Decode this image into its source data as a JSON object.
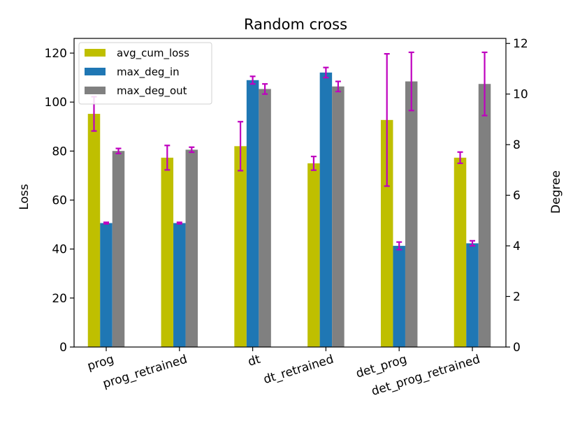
{
  "chart_data": {
    "type": "bar",
    "title": "Random cross",
    "xlabel": "",
    "ylabel": "Loss",
    "ylabel_right": "Degree",
    "ylim": [
      0,
      126
    ],
    "ylim_right": [
      0,
      12.2
    ],
    "yticks": [
      0,
      20,
      40,
      60,
      80,
      100,
      120
    ],
    "yticks_right": [
      0,
      2,
      4,
      6,
      8,
      10,
      12
    ],
    "categories": [
      "prog",
      "prog_retrained",
      "dt",
      "dt_retrained",
      "det_prog",
      "det_prog_retrained"
    ],
    "series": [
      {
        "name": "avg_cum_loss",
        "axis": "left",
        "color": "#bfbf00",
        "values": [
          95.2,
          77.3,
          82,
          75,
          92.7,
          77.3
        ],
        "errors": [
          7,
          5,
          10,
          2.8,
          27,
          2.3
        ]
      },
      {
        "name": "max_deg_in",
        "axis": "right",
        "color": "#1f77b4",
        "values": [
          4.9,
          4.9,
          10.55,
          10.85,
          4.0,
          4.1
        ],
        "errors": [
          0.03,
          0.03,
          0.15,
          0.2,
          0.15,
          0.1
        ]
      },
      {
        "name": "max_deg_out",
        "axis": "right",
        "color": "#808080",
        "values": [
          7.75,
          7.8,
          10.2,
          10.3,
          10.5,
          10.4
        ],
        "errors": [
          0.1,
          0.1,
          0.2,
          0.2,
          1.15,
          1.25
        ]
      }
    ],
    "error_color": "#bf00bf",
    "legend_position": "top-left"
  }
}
